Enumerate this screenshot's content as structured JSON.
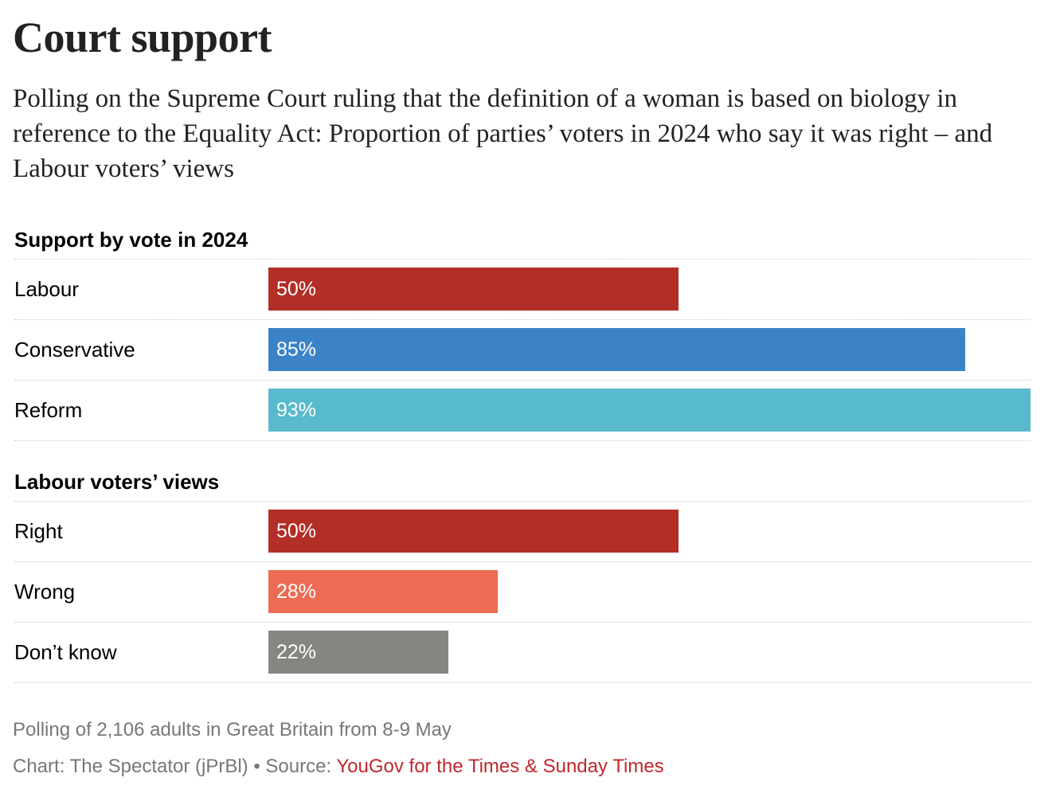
{
  "title": "Court support",
  "subtitle": "Polling on the Supreme Court ruling that the definition of a woman is based on biology in reference to the Equality Act: Proportion of parties’ voters in 2024 who say it was right – and Labour voters’ views",
  "chart_data": [
    {
      "type": "bar",
      "orientation": "horizontal",
      "title": "Support by vote in 2024",
      "categories": [
        "Labour",
        "Conservative",
        "Reform"
      ],
      "values": [
        50,
        85,
        93
      ],
      "labels": [
        "50%",
        "85%",
        "93%"
      ],
      "colors": [
        "#b32e27",
        "#3b83c6",
        "#57bacd"
      ],
      "xlim": [
        0,
        93
      ]
    },
    {
      "type": "bar",
      "orientation": "horizontal",
      "title": "Labour voters’ views",
      "categories": [
        "Right",
        "Wrong",
        "Don’t know"
      ],
      "values": [
        50,
        28,
        22
      ],
      "labels": [
        "50%",
        "28%",
        "22%"
      ],
      "colors": [
        "#b32e27",
        "#ec6b53",
        "#868581"
      ],
      "xlim": [
        0,
        93
      ]
    }
  ],
  "footer": {
    "note": "Polling of 2,106 adults in Great Britain from 8-9 May",
    "credit": "Chart: The Spectator (jPrBl) • Source: ",
    "source": "YouGov for the Times & Sunday Times"
  }
}
